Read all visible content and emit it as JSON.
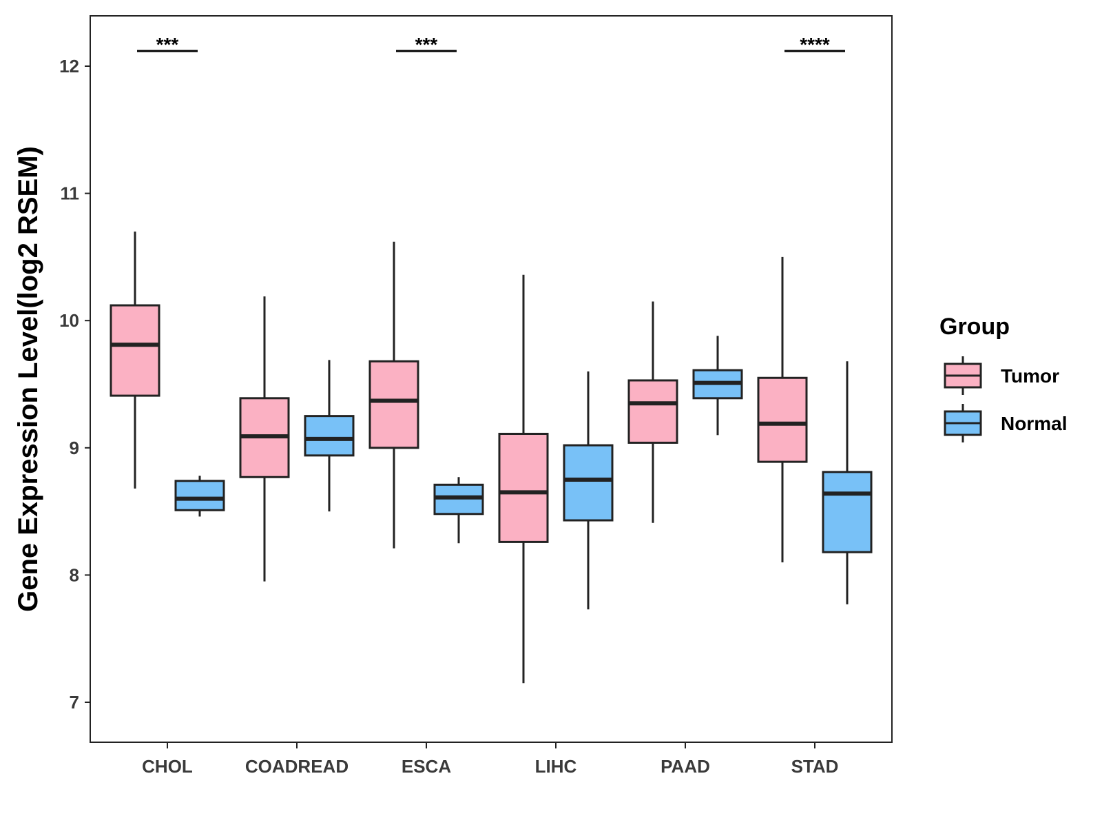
{
  "chart_data": {
    "type": "boxplot",
    "title": "",
    "xlabel": "",
    "ylabel": "Gene Expression Level(log2 RSEM)",
    "ylim": [
      6.7,
      12.4
    ],
    "yticks": [
      7,
      8,
      9,
      10,
      11,
      12
    ],
    "categories": [
      "CHOL",
      "COADREAD",
      "ESCA",
      "LIHC",
      "PAAD",
      "STAD"
    ],
    "legend": {
      "title": "Group",
      "position": "right"
    },
    "series": [
      {
        "name": "Tumor",
        "color": "#FBB1C3",
        "boxes": [
          {
            "category": "CHOL",
            "min": 8.68,
            "q1": 9.41,
            "median": 9.81,
            "q3": 10.12,
            "max": 10.7
          },
          {
            "category": "COADREAD",
            "min": 7.95,
            "q1": 8.77,
            "median": 9.09,
            "q3": 9.39,
            "max": 10.19
          },
          {
            "category": "ESCA",
            "min": 8.21,
            "q1": 9.0,
            "median": 9.37,
            "q3": 9.68,
            "max": 10.62
          },
          {
            "category": "LIHC",
            "min": 7.15,
            "q1": 8.26,
            "median": 8.65,
            "q3": 9.11,
            "max": 10.36
          },
          {
            "category": "PAAD",
            "min": 8.41,
            "q1": 9.04,
            "median": 9.35,
            "q3": 9.53,
            "max": 10.15
          },
          {
            "category": "STAD",
            "min": 8.1,
            "q1": 8.89,
            "median": 9.19,
            "q3": 9.55,
            "max": 10.5
          }
        ]
      },
      {
        "name": "Normal",
        "color": "#78C1F7",
        "boxes": [
          {
            "category": "CHOL",
            "min": 8.46,
            "q1": 8.51,
            "median": 8.6,
            "q3": 8.74,
            "max": 8.78
          },
          {
            "category": "COADREAD",
            "min": 8.5,
            "q1": 8.94,
            "median": 9.07,
            "q3": 9.25,
            "max": 9.69
          },
          {
            "category": "ESCA",
            "min": 8.25,
            "q1": 8.48,
            "median": 8.61,
            "q3": 8.71,
            "max": 8.77
          },
          {
            "category": "LIHC",
            "min": 7.73,
            "q1": 8.43,
            "median": 8.75,
            "q3": 9.02,
            "max": 9.6
          },
          {
            "category": "PAAD",
            "min": 9.1,
            "q1": 9.39,
            "median": 9.51,
            "q3": 9.61,
            "max": 9.88
          },
          {
            "category": "STAD",
            "min": 7.77,
            "q1": 8.18,
            "median": 8.64,
            "q3": 8.81,
            "max": 9.68
          }
        ]
      }
    ],
    "significance": [
      {
        "category": "CHOL",
        "label": "***"
      },
      {
        "category": "ESCA",
        "label": "***"
      },
      {
        "category": "STAD",
        "label": "****"
      }
    ]
  }
}
